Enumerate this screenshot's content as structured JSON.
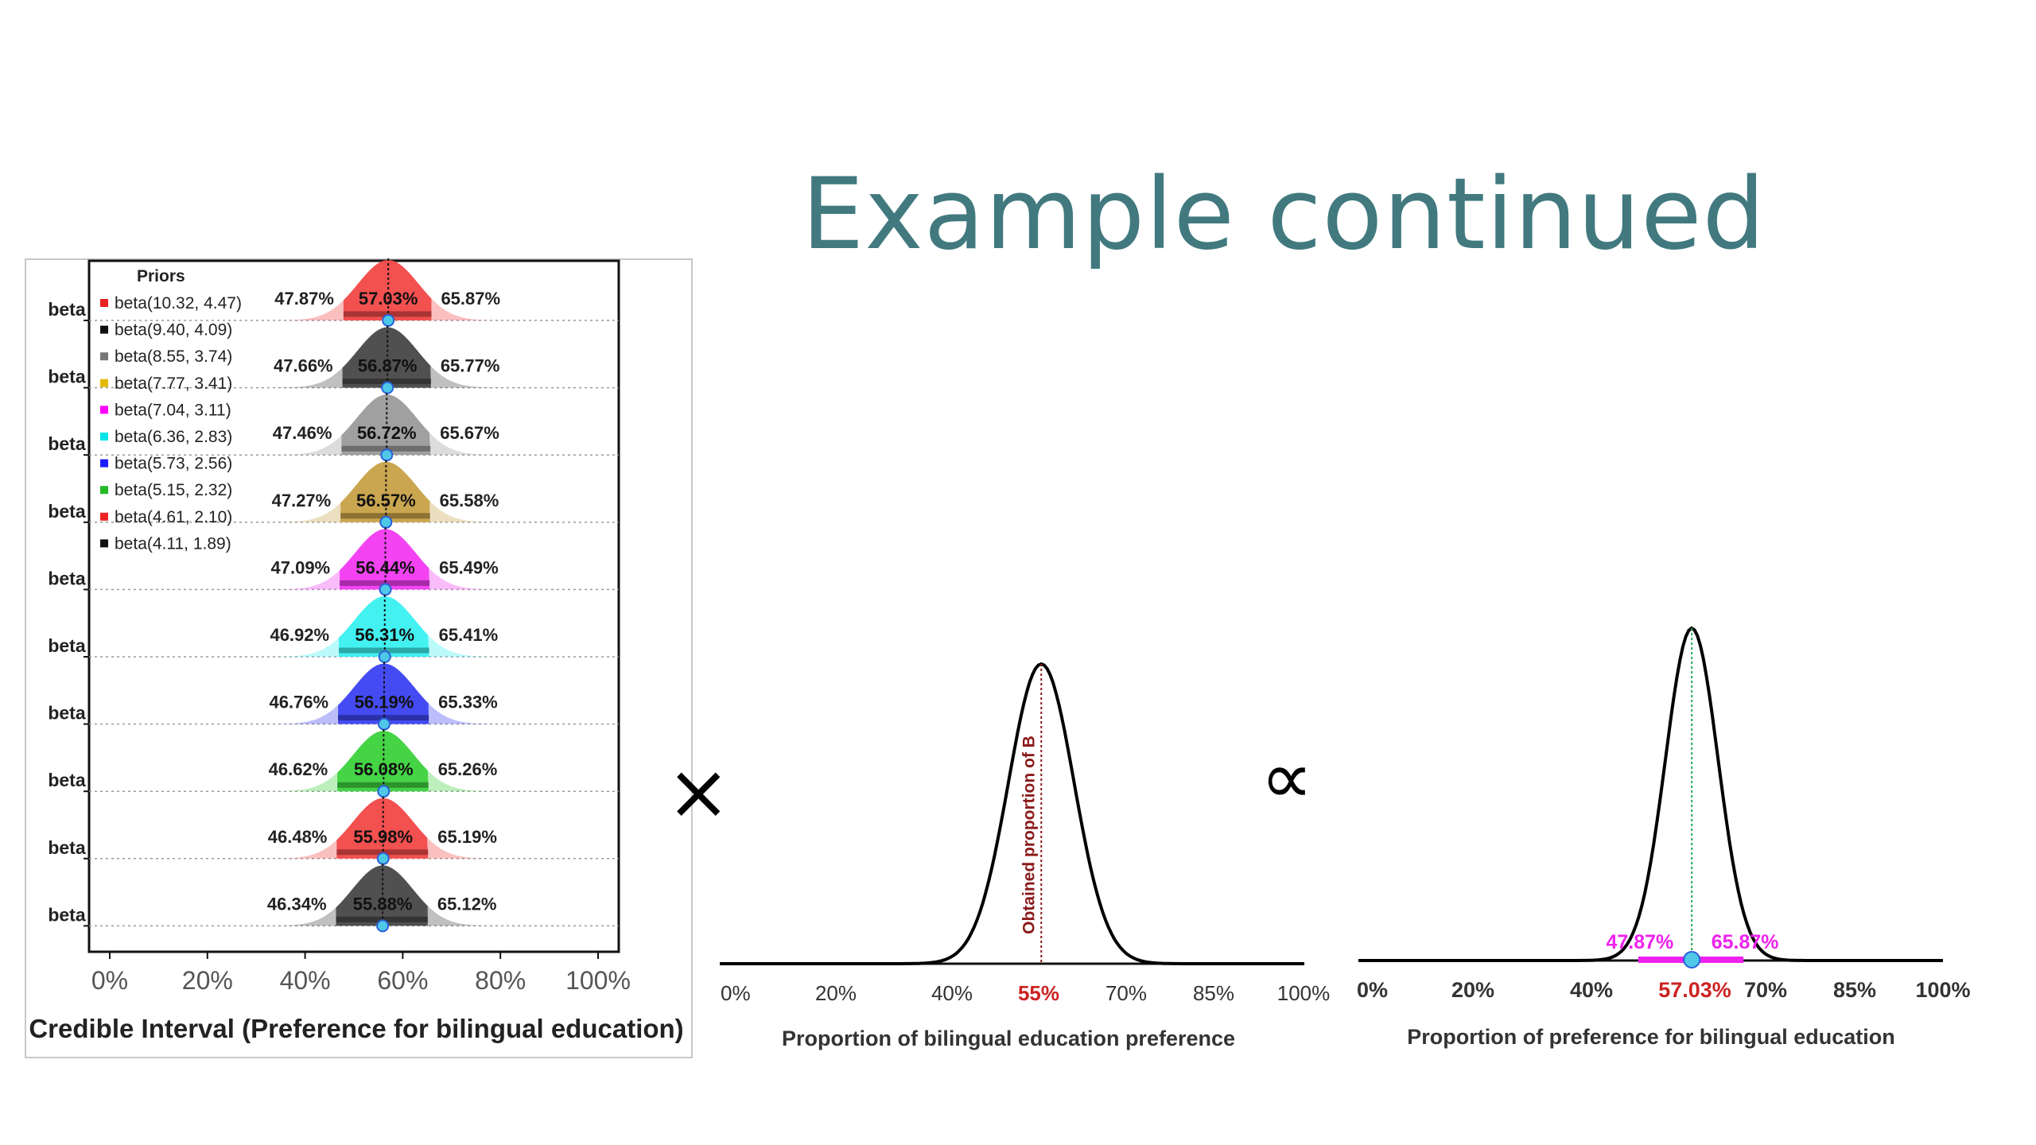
{
  "title": "Example continued",
  "operators": {
    "multiply": "×",
    "proportional": "∝"
  },
  "chart_data": [
    {
      "type": "ridgeline",
      "xlabel": "Credible Interval (Preference for bilingual education)",
      "xticks": [
        "0%",
        "20%",
        "40%",
        "60%",
        "80%",
        "100%"
      ],
      "xlim": [
        0,
        100
      ],
      "row_label": "beta",
      "legend": {
        "title": "Priors",
        "position": "top-left",
        "entries": [
          {
            "label": "beta(10.32, 4.47)",
            "color": "#ee2222"
          },
          {
            "label": "beta(9.40, 4.09)",
            "color": "#111111"
          },
          {
            "label": "beta(8.55, 3.74)",
            "color": "#777777"
          },
          {
            "label": "beta(7.77, 3.41)",
            "color": "#e6b800"
          },
          {
            "label": "beta(7.04, 3.11)",
            "color": "#ff00ff"
          },
          {
            "label": "beta(6.36, 2.83)",
            "color": "#00e5e5"
          },
          {
            "label": "beta(5.73, 2.56)",
            "color": "#1a1aff"
          },
          {
            "label": "beta(5.15, 2.32)",
            "color": "#22bb22"
          },
          {
            "label": "beta(4.61, 2.10)",
            "color": "#ee2222"
          },
          {
            "label": "beta(4.11, 1.89)",
            "color": "#111111"
          }
        ]
      },
      "series": [
        {
          "lower": "47.87%",
          "mean": "57.03%",
          "upper": "65.87%",
          "low": 47.87,
          "mid": 57.03,
          "high": 65.87,
          "color": "#f24a4a"
        },
        {
          "lower": "47.66%",
          "mean": "56.87%",
          "upper": "65.77%",
          "low": 47.66,
          "mid": 56.87,
          "high": 65.77,
          "color": "#4a4a4a"
        },
        {
          "lower": "47.46%",
          "mean": "56.72%",
          "upper": "65.67%",
          "low": 47.46,
          "mid": 56.72,
          "high": 65.67,
          "color": "#9c9c9c"
        },
        {
          "lower": "47.27%",
          "mean": "56.57%",
          "upper": "65.58%",
          "low": 47.27,
          "mid": 56.57,
          "high": 65.58,
          "color": "#c9a24a"
        },
        {
          "lower": "47.09%",
          "mean": "56.44%",
          "upper": "65.49%",
          "low": 47.09,
          "mid": 56.44,
          "high": 65.49,
          "color": "#f23cf2"
        },
        {
          "lower": "46.92%",
          "mean": "56.31%",
          "upper": "65.41%",
          "low": 46.92,
          "mid": 56.31,
          "high": 65.41,
          "color": "#3cf0f0"
        },
        {
          "lower": "46.76%",
          "mean": "56.19%",
          "upper": "65.33%",
          "low": 46.76,
          "mid": 56.19,
          "high": 65.33,
          "color": "#3d45f2"
        },
        {
          "lower": "46.62%",
          "mean": "56.08%",
          "upper": "65.26%",
          "low": 46.62,
          "mid": 56.08,
          "high": 65.26,
          "color": "#3ed23e"
        },
        {
          "lower": "46.48%",
          "mean": "55.98%",
          "upper": "65.19%",
          "low": 46.48,
          "mid": 55.98,
          "high": 65.19,
          "color": "#f24a4a"
        },
        {
          "lower": "46.34%",
          "mean": "55.88%",
          "upper": "65.12%",
          "low": 46.34,
          "mid": 55.88,
          "high": 65.12,
          "color": "#4a4a4a"
        }
      ]
    },
    {
      "type": "line",
      "xlabel": "Proportion of bilingual education preference",
      "xticks": [
        "0%",
        "20%",
        "40%",
        "55%",
        "70%",
        "85%",
        "100%"
      ],
      "highlight_tick": "55%",
      "xlim": [
        0,
        100
      ],
      "peak": 55,
      "spread": 5.6,
      "marker_label": "Obtained proportion of B",
      "marker_color": "#8b1a1a"
    },
    {
      "type": "line",
      "xlabel": "Proportion of preference for bilingual education",
      "xticks": [
        "0%",
        "20%",
        "40%",
        "57.03%",
        "70%",
        "85%",
        "100%"
      ],
      "highlight_tick": "57.03%",
      "xlim": [
        0,
        100
      ],
      "peak": 57.03,
      "spread": 4.5,
      "interval": {
        "lower": "47.87%",
        "upper": "65.87%",
        "low": 47.87,
        "high": 65.87
      },
      "interval_color": "#ee22ee",
      "mean_color": "#4fc8e8"
    }
  ]
}
